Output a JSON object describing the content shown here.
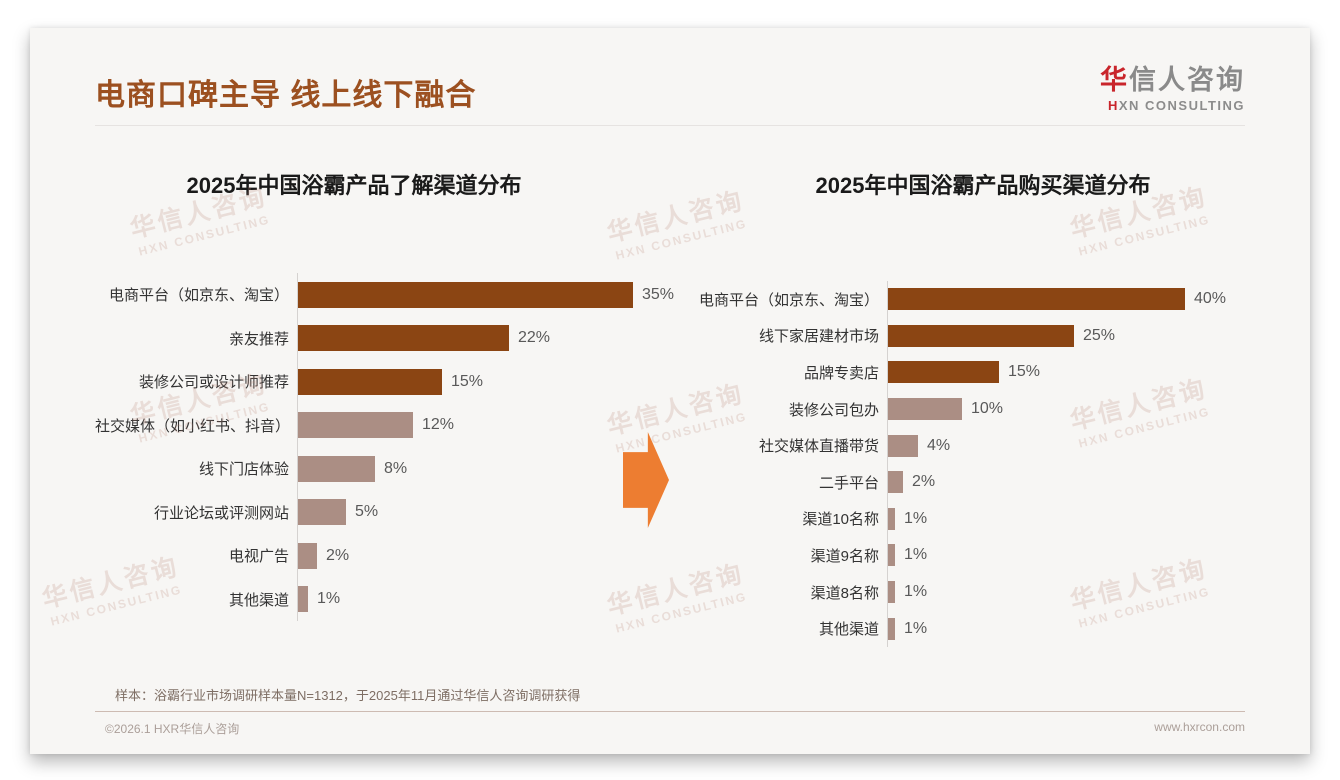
{
  "header": {
    "title": "电商口碑主导 线上线下融合",
    "logo": {
      "line1_red": "华",
      "line1_gray": "信人咨询",
      "line2_red": "H",
      "line2_gray": "XN CONSULTING"
    }
  },
  "watermark": {
    "line1": "华信人咨询",
    "line2": "HXN CONSULTING"
  },
  "colors": {
    "title": "#9C5020",
    "bar_dark": "#8B4513",
    "bar_light": "#AB8E84",
    "arrow": "#ED7D31",
    "logo_red": "#C9252B"
  },
  "chart_data": [
    {
      "type": "bar",
      "orientation": "horizontal",
      "title": "2025年中国浴霸产品了解渠道分布",
      "categories": [
        "电商平台（如京东、淘宝）",
        "亲友推荐",
        "装修公司或设计师推荐",
        "社交媒体（如小红书、抖音）",
        "线下门店体验",
        "行业论坛或评测网站",
        "电视广告",
        "其他渠道"
      ],
      "values": [
        35,
        22,
        15,
        12,
        8,
        5,
        2,
        1
      ],
      "value_labels": [
        "35%",
        "22%",
        "15%",
        "12%",
        "8%",
        "5%",
        "2%",
        "1%"
      ],
      "bar_colors": [
        "#8B4513",
        "#8B4513",
        "#8B4513",
        "#AB8E84",
        "#AB8E84",
        "#AB8E84",
        "#AB8E84",
        "#AB8E84"
      ],
      "unit": "%",
      "xlim": [
        0,
        40
      ],
      "grid": false,
      "legend": false
    },
    {
      "type": "bar",
      "orientation": "horizontal",
      "title": "2025年中国浴霸产品购买渠道分布",
      "categories": [
        "电商平台（如京东、淘宝）",
        "线下家居建材市场",
        "品牌专卖店",
        "装修公司包办",
        "社交媒体直播带货",
        "二手平台",
        "渠道10名称",
        "渠道9名称",
        "渠道8名称",
        "其他渠道"
      ],
      "values": [
        40,
        25,
        15,
        10,
        4,
        2,
        1,
        1,
        1,
        1
      ],
      "value_labels": [
        "40%",
        "25%",
        "15%",
        "10%",
        "4%",
        "2%",
        "1%",
        "1%",
        "1%",
        "1%"
      ],
      "bar_colors": [
        "#8B4513",
        "#8B4513",
        "#8B4513",
        "#AB8E84",
        "#AB8E84",
        "#AB8E84",
        "#AB8E84",
        "#AB8E84",
        "#AB8E84",
        "#AB8E84"
      ],
      "unit": "%",
      "xlim": [
        0,
        45
      ],
      "grid": false,
      "legend": false
    }
  ],
  "footnote": "样本：浴霸行业市场调研样本量N=1312，于2025年11月通过华信人咨询调研获得",
  "footer": {
    "left": "©2026.1 HXR华信人咨询",
    "right": "www.hxrcon.com"
  }
}
